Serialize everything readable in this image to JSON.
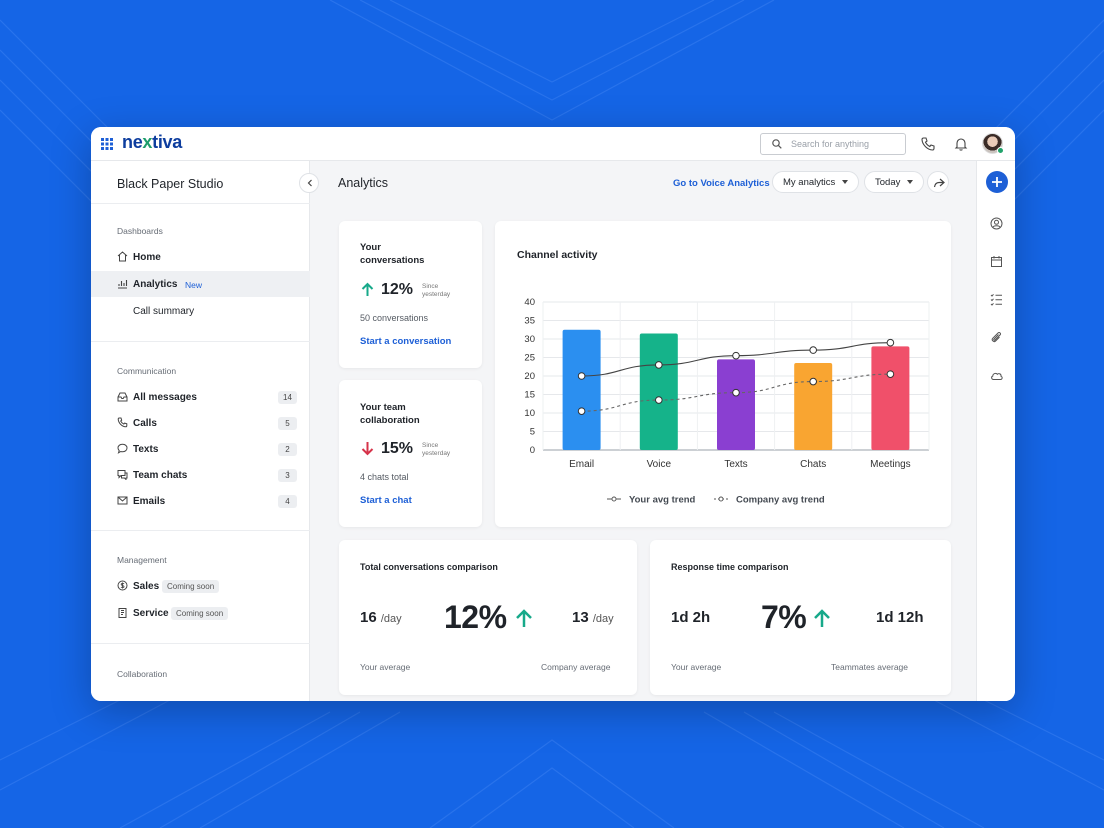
{
  "brand": {
    "logo_text_pre": "ne",
    "logo_text_x": "x",
    "logo_text_post": "tiva"
  },
  "search": {
    "placeholder": "Search for anything"
  },
  "sidebar": {
    "org_name": "Black Paper Studio",
    "sections": {
      "dashboards": "Dashboards",
      "communication": "Communication",
      "management": "Management",
      "collaboration": "Collaboration"
    },
    "dashboards": [
      {
        "label": "Home"
      },
      {
        "label": "Analytics",
        "badge": "New"
      },
      {
        "label": "Call summary"
      }
    ],
    "communication": [
      {
        "label": "All messages",
        "count": "14"
      },
      {
        "label": "Calls",
        "count": "5"
      },
      {
        "label": "Texts",
        "count": "2"
      },
      {
        "label": "Team chats",
        "count": "3"
      },
      {
        "label": "Emails",
        "count": "4"
      }
    ],
    "management": [
      {
        "label": "Sales",
        "tag": "Coming soon"
      },
      {
        "label": "Service",
        "tag": "Coming soon"
      }
    ]
  },
  "header": {
    "title": "Analytics",
    "voice_link": "Go to Voice Analytics",
    "dropdown_scope": "My analytics",
    "dropdown_range": "Today"
  },
  "kpis": {
    "conversations": {
      "title_line1": "Your",
      "title_line2": "conversations",
      "pct": "12%",
      "since1": "Since",
      "since2": "yesterday",
      "sub": "50 conversations",
      "link": "Start a conversation",
      "trend": "up"
    },
    "collaboration": {
      "title_line1": "Your team",
      "title_line2": "collaboration",
      "pct": "15%",
      "since1": "Since",
      "since2": "yesterday",
      "sub": "4 chats total",
      "link": "Start a chat",
      "trend": "down"
    }
  },
  "channel_card": {
    "title": "Channel activity"
  },
  "chart_data": {
    "type": "bar",
    "title": "Channel activity",
    "categories": [
      "Email",
      "Voice",
      "Texts",
      "Chats",
      "Meetings"
    ],
    "values": [
      32.5,
      31.5,
      24.5,
      23.5,
      28
    ],
    "bar_colors": [
      "#2b8ff0",
      "#15b38a",
      "#8a3fd1",
      "#f9a531",
      "#f0506a"
    ],
    "ylim": [
      0,
      40
    ],
    "yticks": [
      "0",
      "5",
      "10",
      "15",
      "20",
      "25",
      "30",
      "35",
      "40"
    ],
    "grid": true,
    "legend_position": "bottom",
    "series": [
      {
        "name": "Your avg trend",
        "style": "solid",
        "values": [
          20,
          23,
          25.5,
          27,
          29
        ]
      },
      {
        "name": "Company avg trend",
        "style": "dashed",
        "values": [
          10.5,
          13.5,
          15.5,
          18.5,
          20.5
        ]
      }
    ]
  },
  "total_comparison": {
    "title": "Total conversations comparison",
    "your_value": "16",
    "your_unit": "/day",
    "pct": "12%",
    "company_value": "13",
    "company_unit": "/day",
    "your_label": "Your average",
    "company_label": "Company average"
  },
  "response_comparison": {
    "title": "Response time comparison",
    "your_value": "1d 2h",
    "pct": "7%",
    "team_value": "1d 12h",
    "your_label": "Your average",
    "team_label": "Teammates average"
  },
  "colors": {
    "accent": "#1d5fd6",
    "up": "#17a98a",
    "down": "#d6334a",
    "background": "#1565e6"
  }
}
